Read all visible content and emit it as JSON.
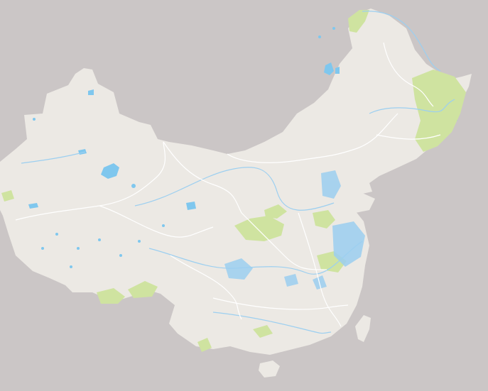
{
  "map": {
    "type": "basemap",
    "region_shown": "China",
    "labels_visible": false,
    "colors": {
      "ocean_background": "#cbc6c6",
      "land": "#ece9e4",
      "boundary": "#ffffff",
      "water": "#7fc7ee",
      "river": "#9ccff0",
      "vegetation": "#cfe3a0"
    }
  }
}
